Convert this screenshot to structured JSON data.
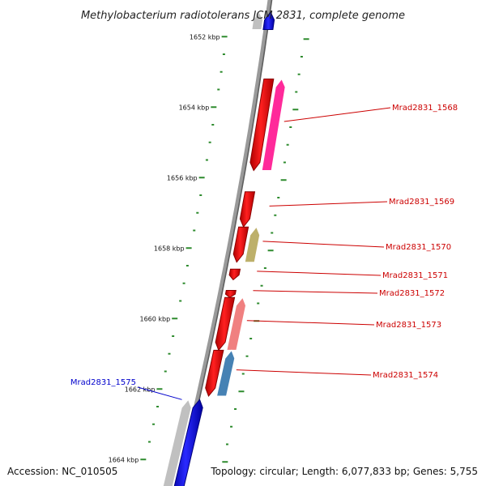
{
  "title": "Methylobacterium radiotolerans JCM 2831, complete genome",
  "footer": {
    "accession": "Accession: NC_010505",
    "summary": "Topology: circular; Length: 6,077,833 bp; Genes: 5,755"
  },
  "colors": {
    "forward_gene": "#ff0000",
    "reverse_gene": "#0000ff",
    "forward_label": "#cc0000",
    "reverse_label": "#0000cc",
    "tick": "#2e8b2e",
    "backbone": "#888888"
  },
  "kbp_ticks": [
    {
      "label": "1652 kbp",
      "value": 1652
    },
    {
      "label": "1654 kbp",
      "value": 1654
    },
    {
      "label": "1656 kbp",
      "value": 1656
    },
    {
      "label": "1658 kbp",
      "value": 1658
    },
    {
      "label": "1660 kbp",
      "value": 1660
    },
    {
      "label": "1662 kbp",
      "value": 1662
    },
    {
      "label": "1664 kbp",
      "value": 1664
    }
  ],
  "genes": [
    {
      "name": "Mrad2831_1568",
      "strand": "+",
      "start": 1653.2,
      "end": 1655.8,
      "cog_color": "#ff2a9a"
    },
    {
      "name": "Mrad2831_1569",
      "strand": "+",
      "start": 1656.4,
      "end": 1657.4,
      "cog_color": null
    },
    {
      "name": "Mrad2831_1570",
      "strand": "+",
      "start": 1657.4,
      "end": 1658.4,
      "cog_color": "#bdb06a"
    },
    {
      "name": "Mrad2831_1571",
      "strand": "+",
      "start": 1658.6,
      "end": 1658.9,
      "cog_color": null
    },
    {
      "name": "Mrad2831_1572",
      "strand": "+",
      "start": 1659.2,
      "end": 1659.4,
      "cog_color": null
    },
    {
      "name": "Mrad2831_1573",
      "strand": "+",
      "start": 1659.4,
      "end": 1660.9,
      "cog_color": "#f08080"
    },
    {
      "name": "Mrad2831_1574",
      "strand": "+",
      "start": 1660.9,
      "end": 1662.2,
      "cog_color": "#4682b4"
    },
    {
      "name": "Mrad2831_1575",
      "strand": "-",
      "start": 1662.3,
      "end": 1665.1,
      "cog_color": "#c0c0c0"
    }
  ],
  "top_reverse_gene": {
    "strand": "-",
    "start": 1651.3,
    "end": 1651.8,
    "cog_color": "#c0c0c0"
  }
}
